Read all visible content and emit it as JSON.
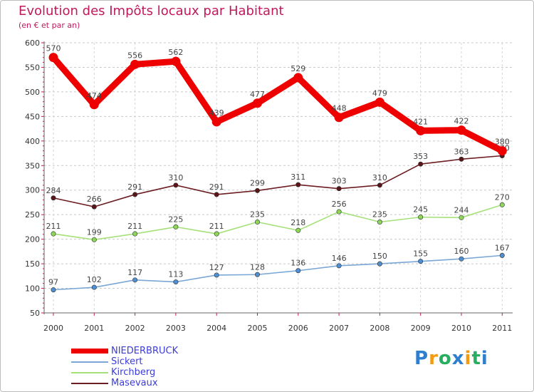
{
  "chart_data": {
    "type": "line",
    "title": "Evolution des Impôts locaux par Habitant",
    "subtitle": "(en € et par an)",
    "xlabel": "",
    "ylabel": "",
    "categories": [
      "2000",
      "2001",
      "2002",
      "2003",
      "2004",
      "2005",
      "2006",
      "2007",
      "2008",
      "2009",
      "2010",
      "2011"
    ],
    "ylim": [
      50,
      600
    ],
    "yticks": [
      50,
      100,
      150,
      200,
      250,
      300,
      350,
      400,
      450,
      500,
      550,
      600
    ],
    "grid": "horizontal-dashed",
    "legend_position": "bottom-left",
    "series": [
      {
        "name": "Masevaux",
        "color": "#6b1d22",
        "marker": "#5a1518",
        "values": [
          284,
          266,
          291,
          310,
          291,
          299,
          311,
          303,
          310,
          353,
          363,
          370
        ]
      },
      {
        "name": "Kirchberg",
        "color": "#a6e07a",
        "marker": "#8ed65a",
        "values": [
          211,
          199,
          211,
          225,
          211,
          235,
          218,
          256,
          235,
          245,
          244,
          270
        ]
      },
      {
        "name": "Sickert",
        "color": "#7aa7d6",
        "marker": "#4f8fd1",
        "values": [
          97,
          102,
          117,
          113,
          127,
          128,
          136,
          146,
          150,
          155,
          160,
          167
        ]
      },
      {
        "name": "NIEDERBRUCK",
        "color": "#ee0000",
        "marker": "#ee0000",
        "values": [
          570,
          474,
          556,
          562,
          439,
          477,
          529,
          448,
          479,
          421,
          422,
          380
        ]
      }
    ]
  },
  "legend": {
    "items": [
      {
        "label": "NIEDERBRUCK",
        "color": "#ee0000",
        "text_color": "#3b3bdc"
      },
      {
        "label": "Sickert",
        "color": "#7aa7d6",
        "text_color": "#3b3bdc"
      },
      {
        "label": "Kirchberg",
        "color": "#a6e07a",
        "text_color": "#3b3bdc"
      },
      {
        "label": "Masevaux",
        "color": "#6b1d22",
        "text_color": "#3b3bdc"
      }
    ]
  },
  "logo": {
    "letters": [
      "P",
      "r",
      "o",
      "x",
      "i",
      "t",
      "i"
    ],
    "colors": [
      "#2e7fd0",
      "#f39c12",
      "#27ae60",
      "#2e7fd0",
      "#f39c12",
      "#27ae60",
      "#2e7fd0"
    ]
  }
}
